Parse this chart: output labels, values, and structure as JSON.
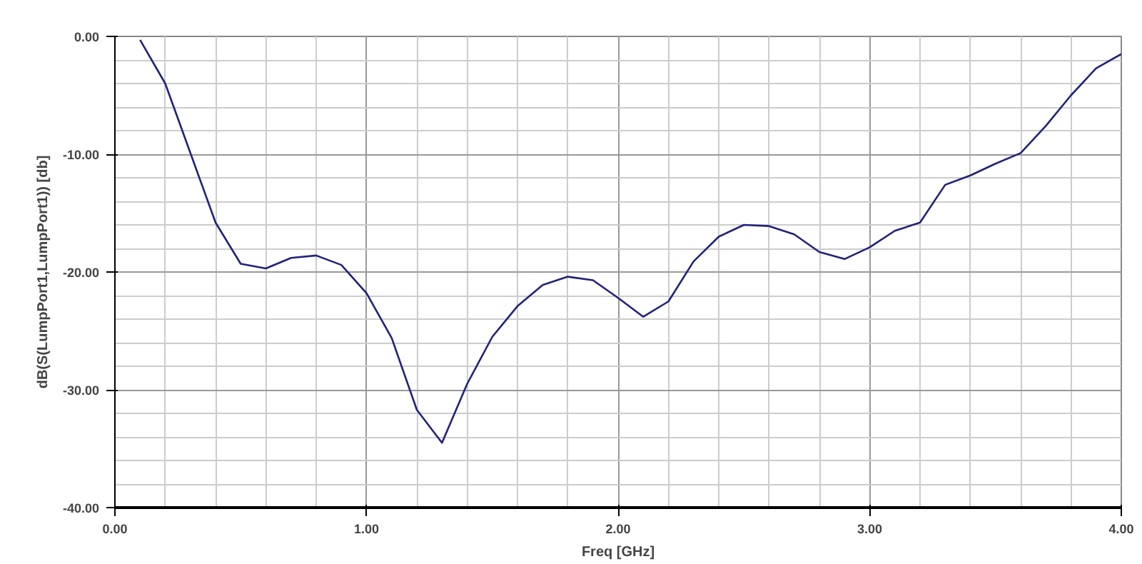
{
  "chart_data": {
    "type": "line",
    "xlabel": "Freq [GHz]",
    "ylabel": "dB(S(LumpPort1,LumpPort1)) [db]",
    "x": [
      0.1,
      0.2,
      0.4,
      0.5,
      0.6,
      0.7,
      0.8,
      0.9,
      1.0,
      1.1,
      1.2,
      1.3,
      1.4,
      1.5,
      1.6,
      1.7,
      1.8,
      1.9,
      2.0,
      2.1,
      2.2,
      2.3,
      2.4,
      2.5,
      2.6,
      2.7,
      2.8,
      2.9,
      3.0,
      3.1,
      3.2,
      3.3,
      3.4,
      3.5,
      3.6,
      3.7,
      3.8,
      3.9,
      4.0
    ],
    "series": [
      {
        "color": "#22227a",
        "values": [
          -0.3,
          -4.0,
          -15.8,
          -19.3,
          -19.7,
          -18.8,
          -18.6,
          -19.4,
          -21.8,
          -25.6,
          -31.7,
          -34.5,
          -29.5,
          -25.5,
          -22.9,
          -21.1,
          -20.4,
          -20.7,
          -22.2,
          -23.8,
          -22.5,
          -19.1,
          -17.0,
          -16.0,
          -16.1,
          -16.8,
          -18.3,
          -18.9,
          -17.9,
          -16.5,
          -15.8,
          -12.6,
          -11.8,
          -10.8,
          -9.9,
          -7.6,
          -5.0,
          -2.7,
          -1.5
        ]
      }
    ],
    "xlim": [
      0,
      4
    ],
    "ylim": [
      -40,
      0
    ],
    "xticks": [
      {
        "value": 0,
        "label": "0.00"
      },
      {
        "value": 1,
        "label": "1.00"
      },
      {
        "value": 2,
        "label": "2.00"
      },
      {
        "value": 3,
        "label": "3.00"
      },
      {
        "value": 4,
        "label": "4.00"
      }
    ],
    "yticks": [
      {
        "value": -40,
        "label": "-40.00"
      },
      {
        "value": -30,
        "label": "-30.00"
      },
      {
        "value": -20,
        "label": "-20.00"
      },
      {
        "value": -10,
        "label": "-10.00"
      },
      {
        "value": 0,
        "label": "0.00"
      }
    ],
    "grid": true,
    "marker": "none",
    "line_style": "solid"
  }
}
